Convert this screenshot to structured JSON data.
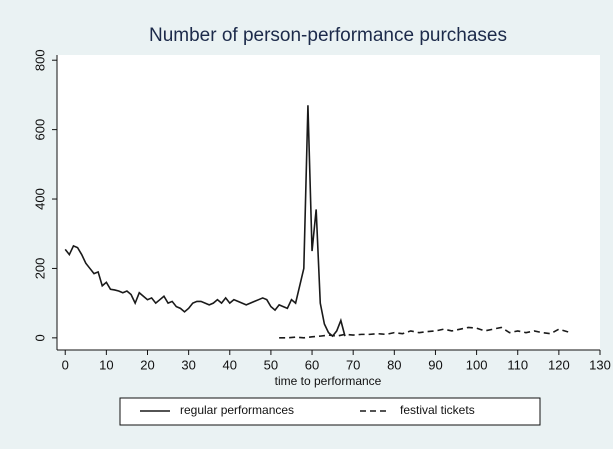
{
  "chart_data": {
    "type": "line",
    "title": "Number of person-performance  purchases",
    "x_label": "time to performance",
    "xlim": [
      -2,
      130
    ],
    "ylim": [
      -35,
      815
    ],
    "xticks": [
      0,
      10,
      20,
      30,
      40,
      50,
      60,
      70,
      80,
      90,
      100,
      110,
      120,
      130
    ],
    "yticks": [
      0,
      200,
      400,
      600,
      800
    ],
    "grid": false,
    "legend": "bottom",
    "series": [
      {
        "name": "regular performances",
        "color": "#1a1a1a",
        "line_style": "solid",
        "x": [
          0,
          1,
          2,
          3,
          4,
          5,
          6,
          7,
          8,
          9,
          10,
          11,
          12,
          13,
          14,
          15,
          16,
          17,
          18,
          19,
          20,
          21,
          22,
          23,
          24,
          25,
          26,
          27,
          28,
          29,
          30,
          31,
          32,
          33,
          34,
          35,
          36,
          37,
          38,
          39,
          40,
          41,
          42,
          43,
          44,
          45,
          46,
          47,
          48,
          49,
          50,
          51,
          52,
          53,
          54,
          55,
          56,
          57,
          58,
          59,
          60,
          61,
          62,
          63,
          64,
          65,
          66,
          67,
          68
        ],
        "values": [
          255,
          240,
          265,
          260,
          240,
          215,
          200,
          185,
          190,
          150,
          160,
          140,
          138,
          135,
          130,
          135,
          125,
          100,
          130,
          120,
          110,
          115,
          100,
          110,
          120,
          100,
          105,
          90,
          85,
          75,
          85,
          100,
          105,
          105,
          100,
          95,
          100,
          110,
          100,
          115,
          100,
          110,
          105,
          100,
          95,
          100,
          105,
          110,
          115,
          110,
          90,
          80,
          95,
          90,
          85,
          110,
          100,
          150,
          200,
          670,
          250,
          370,
          100,
          40,
          15,
          5,
          20,
          50,
          5
        ]
      },
      {
        "name": "festival tickets",
        "color": "#1a1a1a",
        "line_style": "dashed",
        "x": [
          52,
          54,
          56,
          58,
          60,
          62,
          64,
          66,
          68,
          70,
          72,
          74,
          76,
          78,
          80,
          82,
          84,
          86,
          88,
          90,
          92,
          94,
          96,
          98,
          100,
          102,
          104,
          106,
          108,
          110,
          112,
          114,
          116,
          118,
          120,
          122,
          123
        ],
        "values": [
          0,
          0,
          2,
          0,
          3,
          5,
          8,
          5,
          10,
          8,
          10,
          10,
          12,
          10,
          15,
          12,
          20,
          15,
          18,
          20,
          25,
          20,
          25,
          30,
          28,
          20,
          25,
          30,
          15,
          20,
          15,
          20,
          15,
          12,
          25,
          18,
          15
        ]
      }
    ]
  }
}
